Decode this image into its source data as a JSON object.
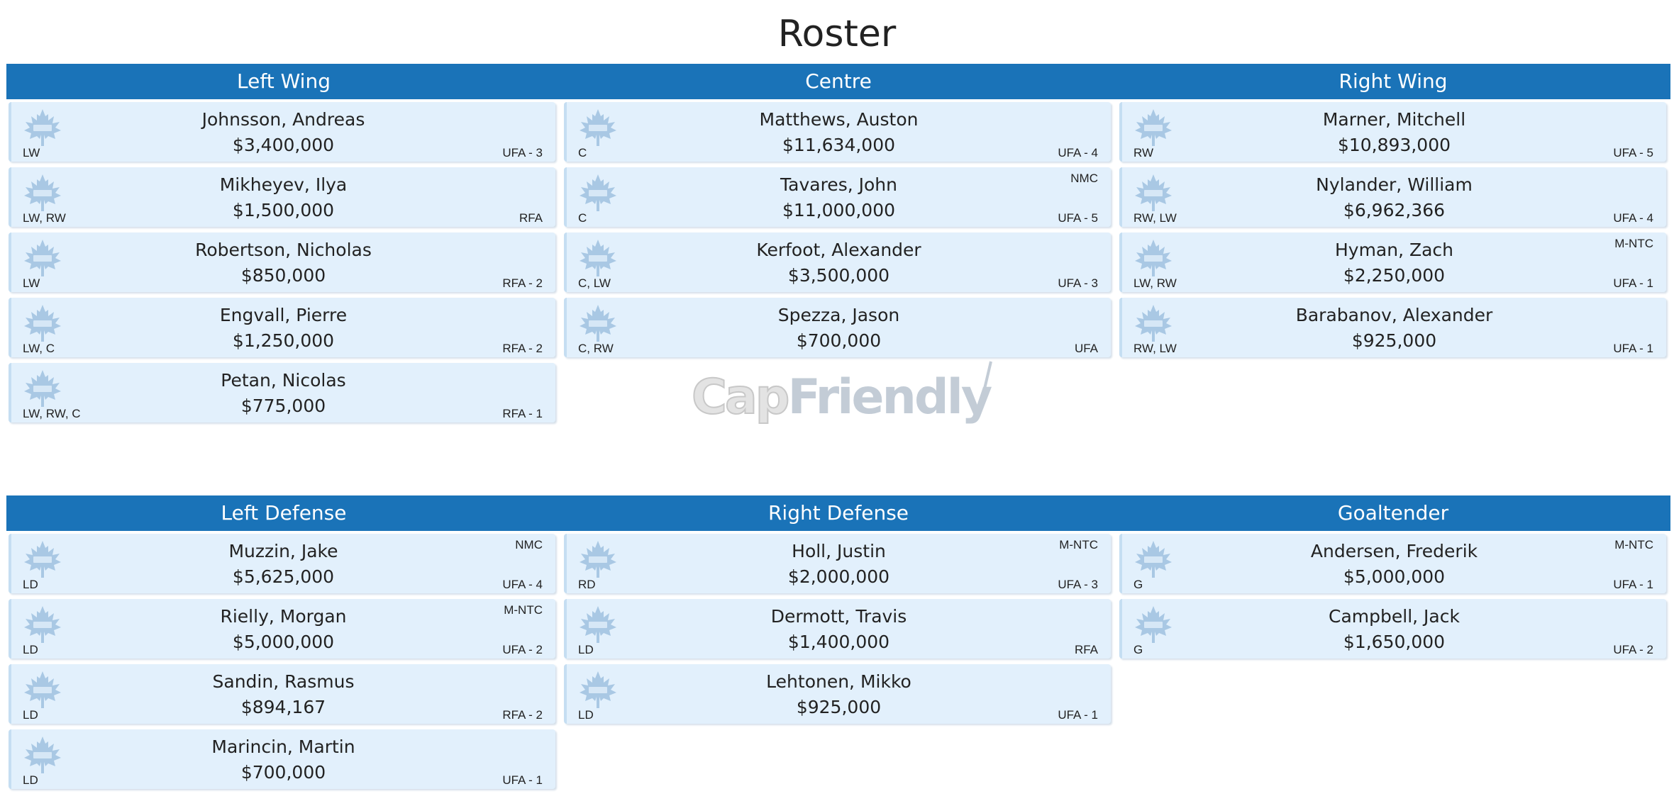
{
  "title": "Roster",
  "watermark": {
    "part1": "Cap",
    "part2": "Friendly"
  },
  "colors": {
    "header": "#1a73b8",
    "card": "#e2f0fc",
    "logo": "#a9c8e4"
  },
  "logo_icon": "maple-leaf-icon",
  "forwards": {
    "headers": [
      "Left Wing",
      "Centre",
      "Right Wing"
    ],
    "columns": [
      [
        {
          "name": "Johnsson, Andreas",
          "salary": "$3,400,000",
          "pos": "LW",
          "contract": "UFA - 3",
          "clause": ""
        },
        {
          "name": "Mikheyev, Ilya",
          "salary": "$1,500,000",
          "pos": "LW, RW",
          "contract": "RFA",
          "clause": ""
        },
        {
          "name": "Robertson, Nicholas",
          "salary": "$850,000",
          "pos": "LW",
          "contract": "RFA - 2",
          "clause": ""
        },
        {
          "name": "Engvall, Pierre",
          "salary": "$1,250,000",
          "pos": "LW, C",
          "contract": "RFA - 2",
          "clause": ""
        },
        {
          "name": "Petan, Nicolas",
          "salary": "$775,000",
          "pos": "LW, RW, C",
          "contract": "RFA - 1",
          "clause": ""
        }
      ],
      [
        {
          "name": "Matthews, Auston",
          "salary": "$11,634,000",
          "pos": "C",
          "contract": "UFA - 4",
          "clause": ""
        },
        {
          "name": "Tavares, John",
          "salary": "$11,000,000",
          "pos": "C",
          "contract": "UFA - 5",
          "clause": "NMC"
        },
        {
          "name": "Kerfoot, Alexander",
          "salary": "$3,500,000",
          "pos": "C, LW",
          "contract": "UFA - 3",
          "clause": ""
        },
        {
          "name": "Spezza, Jason",
          "salary": "$700,000",
          "pos": "C, RW",
          "contract": "UFA",
          "clause": ""
        }
      ],
      [
        {
          "name": "Marner, Mitchell",
          "salary": "$10,893,000",
          "pos": "RW",
          "contract": "UFA - 5",
          "clause": ""
        },
        {
          "name": "Nylander, William",
          "salary": "$6,962,366",
          "pos": "RW, LW",
          "contract": "UFA - 4",
          "clause": ""
        },
        {
          "name": "Hyman, Zach",
          "salary": "$2,250,000",
          "pos": "LW, RW",
          "contract": "UFA - 1",
          "clause": "M-NTC"
        },
        {
          "name": "Barabanov, Alexander",
          "salary": "$925,000",
          "pos": "RW, LW",
          "contract": "UFA - 1",
          "clause": ""
        }
      ]
    ]
  },
  "defense": {
    "headers": [
      "Left Defense",
      "Right Defense",
      "Goaltender"
    ],
    "columns": [
      [
        {
          "name": "Muzzin, Jake",
          "salary": "$5,625,000",
          "pos": "LD",
          "contract": "UFA - 4",
          "clause": "NMC"
        },
        {
          "name": "Rielly, Morgan",
          "salary": "$5,000,000",
          "pos": "LD",
          "contract": "UFA - 2",
          "clause": "M-NTC"
        },
        {
          "name": "Sandin, Rasmus",
          "salary": "$894,167",
          "pos": "LD",
          "contract": "RFA - 2",
          "clause": ""
        },
        {
          "name": "Marincin, Martin",
          "salary": "$700,000",
          "pos": "LD",
          "contract": "UFA - 1",
          "clause": ""
        }
      ],
      [
        {
          "name": "Holl, Justin",
          "salary": "$2,000,000",
          "pos": "RD",
          "contract": "UFA - 3",
          "clause": "M-NTC"
        },
        {
          "name": "Dermott, Travis",
          "salary": "$1,400,000",
          "pos": "LD",
          "contract": "RFA",
          "clause": ""
        },
        {
          "name": "Lehtonen, Mikko",
          "salary": "$925,000",
          "pos": "LD",
          "contract": "UFA - 1",
          "clause": ""
        }
      ],
      [
        {
          "name": "Andersen, Frederik",
          "salary": "$5,000,000",
          "pos": "G",
          "contract": "UFA - 1",
          "clause": "M-NTC"
        },
        {
          "name": "Campbell, Jack",
          "salary": "$1,650,000",
          "pos": "G",
          "contract": "UFA - 2",
          "clause": ""
        }
      ]
    ]
  }
}
